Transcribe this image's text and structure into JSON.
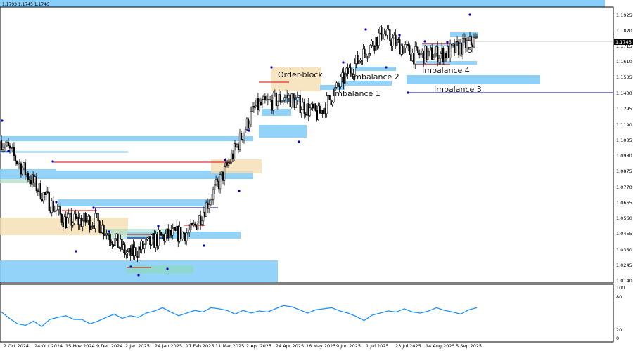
{
  "header": {
    "ohlc_readout": "1.1793 1.1745 1.1746"
  },
  "price_axis": {
    "ticks": [
      "1.1925",
      "1.1820",
      "1.1715",
      "1.1610",
      "1.1505",
      "1.1400",
      "1.1295",
      "1.1190",
      "1.1085",
      "1.0980",
      "1.0875",
      "1.0770",
      "1.0665",
      "1.0560",
      "1.0455",
      "1.0350",
      "1.0245",
      "1.0140"
    ],
    "current_price": "1.1746"
  },
  "indicator_axis": {
    "ticks": [
      "100",
      "80",
      "20",
      "0"
    ]
  },
  "time_axis": {
    "labels": [
      "2 Oct 2024",
      "24 Oct 2024",
      "15 Nov 2024",
      "9 Dec 2024",
      "2 Jan 2025",
      "24 Jan 2025",
      "17 Feb 2025",
      "11 Mar 2025",
      "2 Apr 2025",
      "24 Apr 2025",
      "16 May 2025",
      "9 Jun 2025",
      "1 Jul 2025",
      "23 Jul 2025",
      "14 Aug 2025",
      "5 Sep 2025"
    ]
  },
  "annotations": {
    "order_block": "Order-block",
    "imbalance_1": "Imbalance 1",
    "imbalance_2": "Imbalance 2",
    "imbalance_3": "Imbalance 3",
    "imbalance_4": "Imbalance 4",
    "imbalance_5": "5"
  },
  "colors": {
    "candle": "#000000",
    "imbalance_zone": "#87cefa",
    "order_block_zone": "#f5deb3",
    "support_line": "#00008b",
    "resistance_line": "#e00000",
    "fractal_marker": "#0000cd",
    "indicator_line": "#1e90ff"
  },
  "chart_data": [
    {
      "type": "candlestick",
      "title": "",
      "ylim": [
        1.014,
        1.199
      ],
      "x_labels": [
        "2 Oct 2024",
        "24 Oct 2024",
        "15 Nov 2024",
        "9 Dec 2024",
        "2 Jan 2025",
        "24 Jan 2025",
        "17 Feb 2025",
        "11 Mar 2025",
        "2 Apr 2025",
        "24 Apr 2025",
        "16 May 2025",
        "9 Jun 2025",
        "1 Jul 2025",
        "23 Jul 2025",
        "14 Aug 2025",
        "5 Sep 2025"
      ],
      "close_path": [
        [
          "2 Oct 2024",
          1.108
        ],
        [
          "24 Oct 2024",
          1.08
        ],
        [
          "15 Nov 2024",
          1.054
        ],
        [
          "9 Dec 2024",
          1.054
        ],
        [
          "2 Jan 2025",
          1.031
        ],
        [
          "24 Jan 2025",
          1.043
        ],
        [
          "17 Feb 2025",
          1.047
        ],
        [
          "11 Mar 2025",
          1.085
        ],
        [
          "2 Apr 2025",
          1.13
        ],
        [
          "24 Apr 2025",
          1.137
        ],
        [
          "16 May 2025",
          1.125
        ],
        [
          "9 Jun 2025",
          1.155
        ],
        [
          "1 Jul 2025",
          1.18
        ],
        [
          "23 Jul 2025",
          1.165
        ],
        [
          "14 Aug 2025",
          1.166
        ],
        [
          "5 Sep 2025",
          1.175
        ]
      ],
      "last": 1.1746,
      "zones": [
        {
          "name": "Order-block",
          "kind": "order_block",
          "from": 1.142,
          "to": 1.156
        },
        {
          "name": "Imbalance 1",
          "kind": "imbalance",
          "from": 1.143,
          "to": 1.147
        },
        {
          "name": "Imbalance 2",
          "kind": "imbalance",
          "from": 1.156,
          "to": 1.159
        },
        {
          "name": "Imbalance 3",
          "kind": "imbalance",
          "from": 1.146,
          "to": 1.152
        },
        {
          "name": "Imbalance 4",
          "kind": "imbalance",
          "from": 1.16,
          "to": 1.162
        },
        {
          "name": "5",
          "kind": "imbalance",
          "from": 1.178,
          "to": 1.181
        }
      ],
      "levels": [
        {
          "kind": "support",
          "price": 1.14
        },
        {
          "kind": "resistance",
          "price": 1.092
        },
        {
          "kind": "resistance",
          "price": 1.0632
        },
        {
          "kind": "resistance",
          "price": 1.148
        }
      ]
    },
    {
      "type": "line",
      "title": "",
      "ylim": [
        0,
        100
      ],
      "x_labels": [
        "2 Oct 2024",
        "24 Oct 2024",
        "15 Nov 2024",
        "9 Dec 2024",
        "2 Jan 2025",
        "24 Jan 2025",
        "17 Feb 2025",
        "11 Mar 2025",
        "2 Apr 2025",
        "24 Apr 2025",
        "16 May 2025",
        "9 Jun 2025",
        "1 Jul 2025",
        "23 Jul 2025",
        "14 Aug 2025",
        "5 Sep 2025"
      ],
      "series": [
        {
          "values": [
            52,
            40,
            30,
            27,
            35,
            25,
            38,
            42,
            45,
            38,
            38,
            30,
            35,
            42,
            48,
            40,
            45,
            42,
            50,
            54,
            60,
            52,
            45,
            50,
            55,
            52,
            60,
            58,
            55,
            48,
            55,
            50,
            54,
            52,
            58,
            64,
            62,
            56,
            50,
            56,
            58,
            60,
            54,
            50,
            44,
            36,
            46,
            50,
            54,
            52,
            58,
            52,
            50,
            54,
            60,
            55,
            52,
            48,
            56,
            60
          ]
        }
      ]
    }
  ]
}
